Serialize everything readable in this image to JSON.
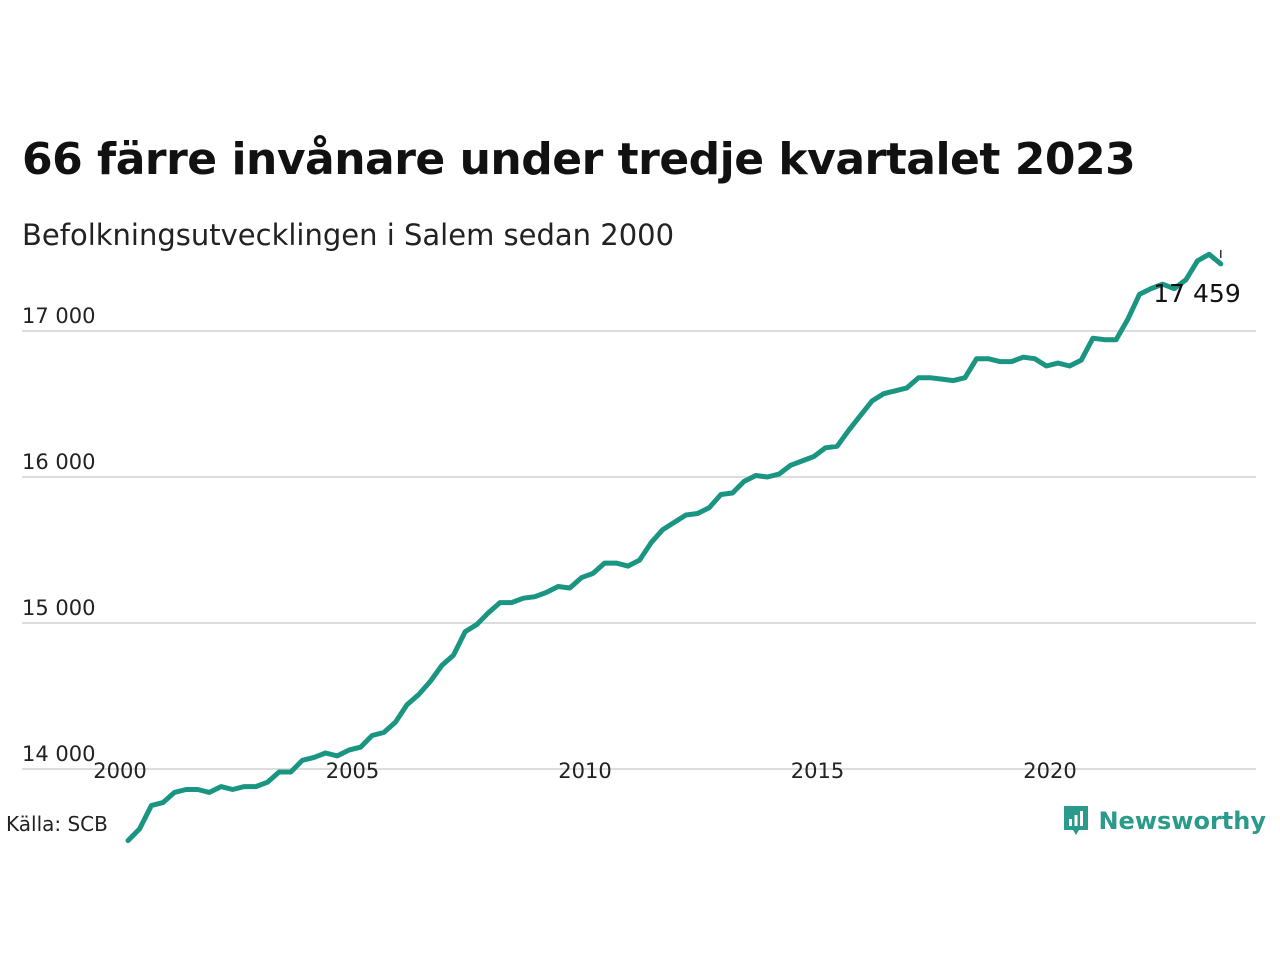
{
  "header": {
    "title": "66 färre invånare under tredje kvartalet 2023",
    "subtitle": "Befolkningsutvecklingen i Salem sedan 2000"
  },
  "footer": {
    "source": "Källa: SCB",
    "brand": "Newsworthy"
  },
  "colors": {
    "line": "#1a9582",
    "grid": "#dddddd",
    "brand": "#2a9a8a"
  },
  "chart_data": {
    "type": "line",
    "title": "66 färre invånare under tredje kvartalet 2023",
    "subtitle": "Befolkningsutvecklingen i Salem sedan 2000",
    "xlabel": "",
    "ylabel": "",
    "x_start": "2000 Q1",
    "x_ticks": [
      "2000",
      "2005",
      "2010",
      "2015",
      "2020"
    ],
    "y_ticks": [
      14000,
      15000,
      16000,
      17000
    ],
    "y_tick_labels": [
      "14 000",
      "15 000",
      "16 000",
      "17 000"
    ],
    "xlim": [
      2000,
      2024
    ],
    "ylim": [
      13480,
      17520
    ],
    "grid": "horizontal",
    "last_label": "17 459",
    "values": [
      13510,
      13590,
      13750,
      13770,
      13840,
      13860,
      13860,
      13840,
      13880,
      13860,
      13880,
      13880,
      13910,
      13980,
      13980,
      14060,
      14080,
      14110,
      14090,
      14130,
      14150,
      14230,
      14250,
      14320,
      14440,
      14510,
      14600,
      14710,
      14780,
      14940,
      14990,
      15070,
      15140,
      15140,
      15170,
      15180,
      15210,
      15250,
      15240,
      15310,
      15340,
      15410,
      15410,
      15390,
      15430,
      15550,
      15640,
      15690,
      15740,
      15750,
      15790,
      15880,
      15890,
      15970,
      16010,
      16000,
      16020,
      16080,
      16110,
      16140,
      16200,
      16210,
      16320,
      16420,
      16520,
      16570,
      16590,
      16610,
      16680,
      16680,
      16670,
      16660,
      16680,
      16810,
      16810,
      16790,
      16790,
      16820,
      16810,
      16760,
      16780,
      16760,
      16800,
      16950,
      16940,
      16940,
      17080,
      17250,
      17290,
      17320,
      17290,
      17350,
      17480,
      17525,
      17459
    ]
  }
}
